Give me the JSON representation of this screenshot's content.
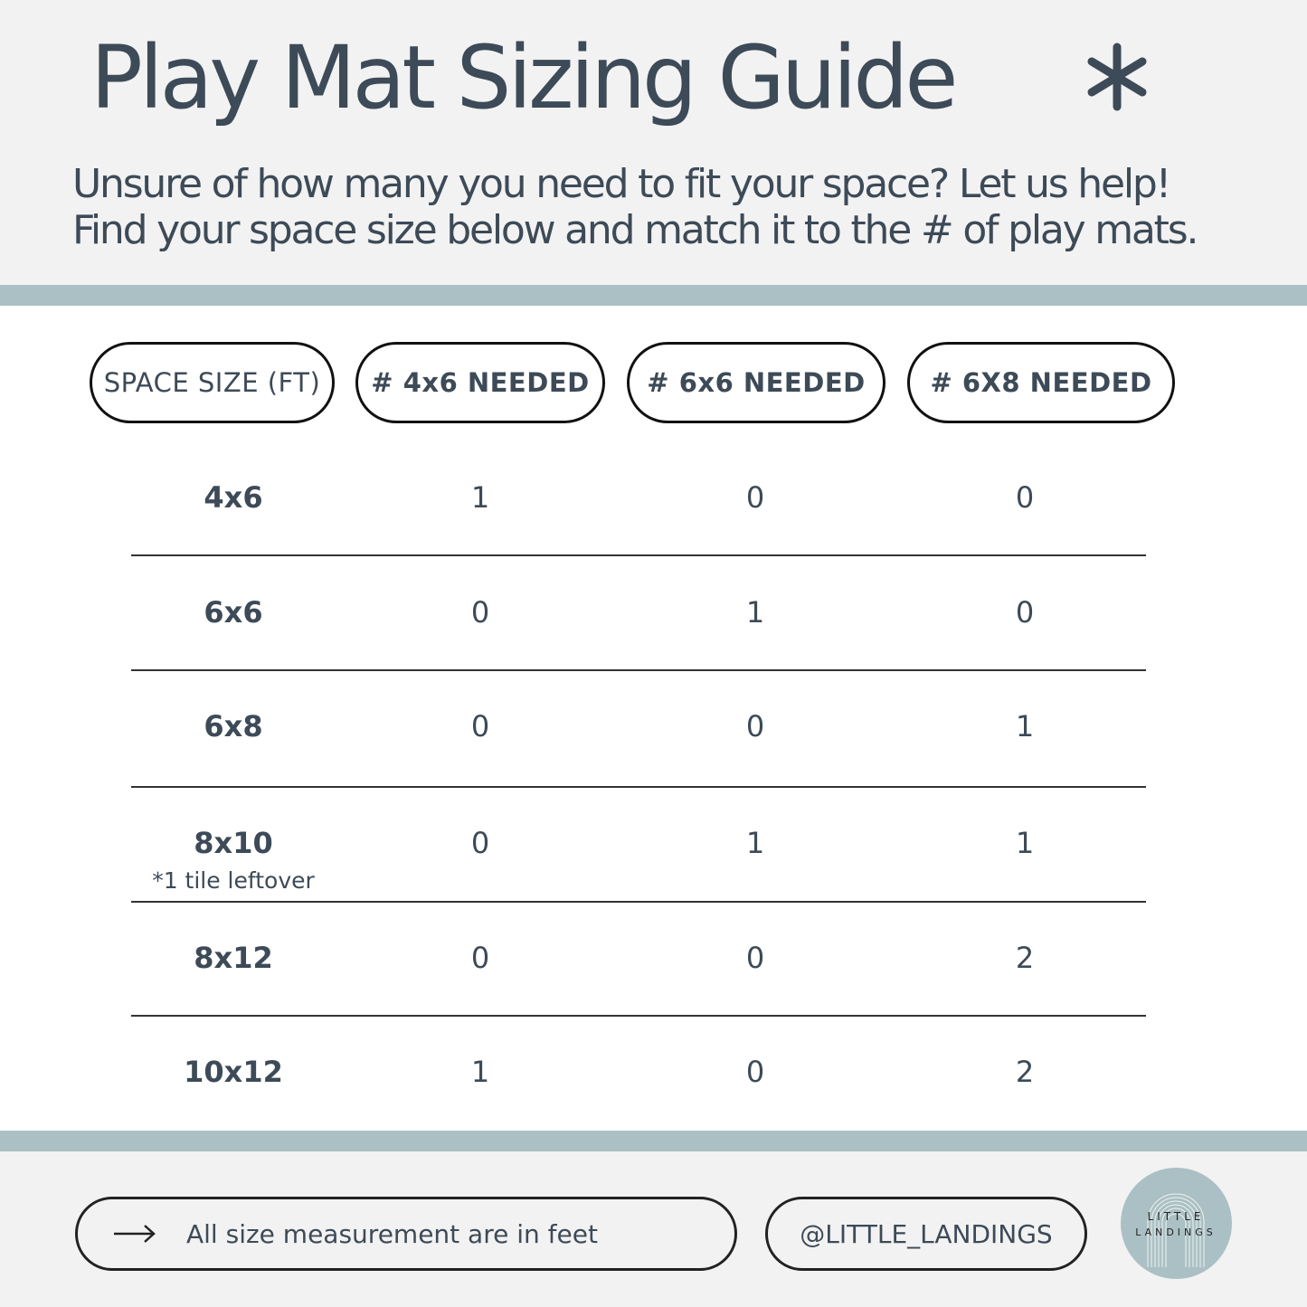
{
  "header": {
    "title": "Play Mat Sizing Guide",
    "decoration_icon": "asterisk-icon",
    "subtitle_lines": [
      "Unsure of how many you need to fit your space? Let us help!",
      "Find your space size below and match it to the # of play mats."
    ]
  },
  "table": {
    "columns": [
      "SPACE SIZE (FT)",
      "# 4x6 NEEDED",
      "# 6x6 NEEDED",
      "# 6X8 NEEDED"
    ],
    "rows": [
      {
        "size": "4x6",
        "n4x6": "1",
        "n6x6": "0",
        "n6x8": "0"
      },
      {
        "size": "6x6",
        "n4x6": "0",
        "n6x6": "1",
        "n6x8": "0"
      },
      {
        "size": "6x8",
        "n4x6": "0",
        "n6x6": "0",
        "n6x8": "1"
      },
      {
        "size": "8x10",
        "note": "*1 tile leftover",
        "n4x6": "0",
        "n6x6": "1",
        "n6x8": "1"
      },
      {
        "size": "8x12",
        "n4x6": "0",
        "n6x6": "0",
        "n6x8": "2"
      },
      {
        "size": "10x12",
        "n4x6": "1",
        "n6x6": "0",
        "n6x8": "2"
      }
    ]
  },
  "footer": {
    "note": "All size measurement are in feet",
    "note_icon": "arrow-right-icon",
    "handle": "@LITTLE_LANDINGS",
    "logo": {
      "line1": "LITTLE",
      "line2": "LANDINGS"
    }
  },
  "colors": {
    "text": "#3d4a57",
    "band": "#abc0c4",
    "background": "#f2f2f2"
  }
}
